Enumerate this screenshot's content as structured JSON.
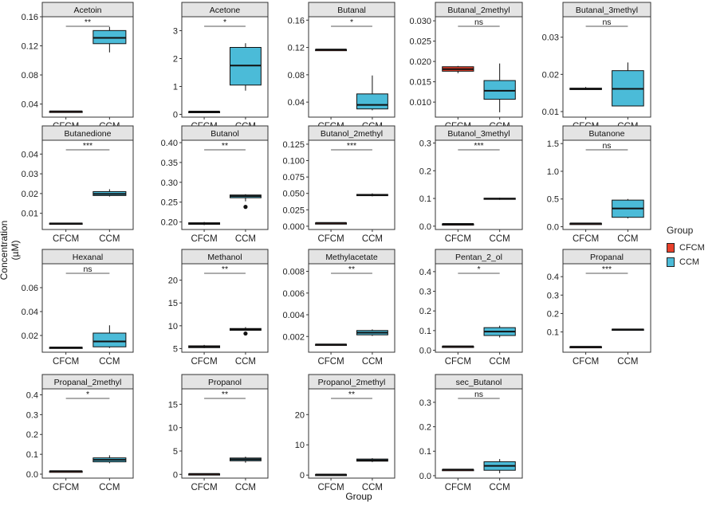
{
  "chart_data": {
    "type": "boxplot",
    "layout": "facet_grid_5_columns",
    "xlabel": "Group",
    "ylabel": "Concentration (µM)",
    "groups": [
      "CFCM",
      "CCM"
    ],
    "legend": {
      "title": "Group",
      "placement": "right",
      "entries": [
        {
          "label": "CFCM",
          "color": "#E8402B"
        },
        {
          "label": "CCM",
          "color": "#4BBBD8"
        }
      ]
    },
    "panels": [
      {
        "title": "Acetoin",
        "sig": "**",
        "yrange": [
          0.022,
          0.16
        ],
        "yticks": [
          0.04,
          0.08,
          0.12,
          0.16
        ],
        "tick_labels": [
          "0.04",
          "0.08",
          "0.12",
          "0.16"
        ],
        "boxes": [
          {
            "min": 0.03,
            "q1": 0.03,
            "median": 0.03,
            "q3": 0.03,
            "max": 0.03,
            "outliers": []
          },
          {
            "min": 0.111,
            "q1": 0.123,
            "median": 0.131,
            "q3": 0.141,
            "max": 0.146,
            "outliers": []
          }
        ]
      },
      {
        "title": "Acetone",
        "sig": "*",
        "yrange": [
          -0.1,
          3.5
        ],
        "yticks": [
          0,
          1,
          2,
          3
        ],
        "tick_labels": [
          "0",
          "1",
          "2",
          "3"
        ],
        "boxes": [
          {
            "min": 0.1,
            "q1": 0.1,
            "median": 0.1,
            "q3": 0.1,
            "max": 0.1,
            "outliers": []
          },
          {
            "min": 0.85,
            "q1": 1.05,
            "median": 1.75,
            "q3": 2.4,
            "max": 2.55,
            "outliers": []
          }
        ]
      },
      {
        "title": "Butanal",
        "sig": "*",
        "yrange": [
          0.018,
          0.165
        ],
        "yticks": [
          0.04,
          0.08,
          0.12,
          0.16
        ],
        "tick_labels": [
          "0.04",
          "0.08",
          "0.12",
          "0.16"
        ],
        "boxes": [
          {
            "min": 0.117,
            "q1": 0.117,
            "median": 0.117,
            "q3": 0.117,
            "max": 0.117,
            "outliers": []
          },
          {
            "min": 0.028,
            "q1": 0.03,
            "median": 0.036,
            "q3": 0.052,
            "max": 0.079,
            "outliers": []
          }
        ]
      },
      {
        "title": "Butanal_2methyl",
        "sig": "ns",
        "yrange": [
          0.0063,
          0.031
        ],
        "yticks": [
          0.01,
          0.015,
          0.02,
          0.025,
          0.03
        ],
        "tick_labels": [
          "0.010",
          "0.015",
          "0.020",
          "0.025",
          "0.030"
        ],
        "boxes": [
          {
            "min": 0.0171,
            "q1": 0.0176,
            "median": 0.0181,
            "q3": 0.0187,
            "max": 0.0189,
            "outliers": []
          },
          {
            "min": 0.0075,
            "q1": 0.0107,
            "median": 0.0128,
            "q3": 0.0153,
            "max": 0.0195,
            "outliers": []
          }
        ]
      },
      {
        "title": "Butanal_3methyl",
        "sig": "ns",
        "yrange": [
          0.0085,
          0.0355
        ],
        "yticks": [
          0.01,
          0.02,
          0.03
        ],
        "tick_labels": [
          "0.01",
          "0.02",
          "0.03"
        ],
        "boxes": [
          {
            "min": 0.0158,
            "q1": 0.0159,
            "median": 0.0161,
            "q3": 0.0163,
            "max": 0.0166,
            "outliers": []
          },
          {
            "min": 0.0115,
            "q1": 0.0115,
            "median": 0.0161,
            "q3": 0.021,
            "max": 0.0232,
            "outliers": []
          }
        ]
      },
      {
        "title": "Butanedione",
        "sig": "***",
        "yrange": [
          0.0018,
          0.047
        ],
        "yticks": [
          0.01,
          0.02,
          0.03,
          0.04
        ],
        "tick_labels": [
          "0.01",
          "0.02",
          "0.03",
          "0.04"
        ],
        "boxes": [
          {
            "min": 0.0048,
            "q1": 0.0048,
            "median": 0.0049,
            "q3": 0.005,
            "max": 0.005,
            "outliers": []
          },
          {
            "min": 0.0185,
            "q1": 0.019,
            "median": 0.0198,
            "q3": 0.021,
            "max": 0.0222,
            "outliers": []
          }
        ]
      },
      {
        "title": "Butanol",
        "sig": "**",
        "yrange": [
          0.181,
          0.406
        ],
        "yticks": [
          0.2,
          0.25,
          0.3,
          0.35,
          0.4
        ],
        "tick_labels": [
          "0.20",
          "0.25",
          "0.30",
          "0.35",
          "0.40"
        ],
        "boxes": [
          {
            "min": 0.192,
            "q1": 0.194,
            "median": 0.196,
            "q3": 0.198,
            "max": 0.2,
            "outliers": []
          },
          {
            "min": 0.252,
            "q1": 0.261,
            "median": 0.265,
            "q3": 0.268,
            "max": 0.27,
            "outliers": [
              0.238
            ]
          }
        ]
      },
      {
        "title": "Butanol_2methyl",
        "sig": "***",
        "yrange": [
          -0.005,
          0.131
        ],
        "yticks": [
          0,
          0.025,
          0.05,
          0.075,
          0.1,
          0.125
        ],
        "tick_labels": [
          "0.000",
          "0.025",
          "0.050",
          "0.075",
          "0.100",
          "0.125"
        ],
        "boxes": [
          {
            "min": 0.005,
            "q1": 0.005,
            "median": 0.005,
            "q3": 0.005,
            "max": 0.005,
            "outliers": []
          },
          {
            "min": 0.0455,
            "q1": 0.0465,
            "median": 0.0475,
            "q3": 0.0485,
            "max": 0.05,
            "outliers": []
          }
        ]
      },
      {
        "title": "Butanol_3methyl",
        "sig": "***",
        "yrange": [
          -0.012,
          0.31
        ],
        "yticks": [
          0,
          0.1,
          0.2,
          0.3
        ],
        "tick_labels": [
          "0.0",
          "0.1",
          "0.2",
          "0.3"
        ],
        "boxes": [
          {
            "min": 0.008,
            "q1": 0.008,
            "median": 0.008,
            "q3": 0.008,
            "max": 0.008,
            "outliers": []
          },
          {
            "min": 0.095,
            "q1": 0.097,
            "median": 0.099,
            "q3": 0.101,
            "max": 0.103,
            "outliers": []
          }
        ]
      },
      {
        "title": "Butanone",
        "sig": "ns",
        "yrange": [
          -0.05,
          1.56
        ],
        "yticks": [
          0,
          0.5,
          1.0,
          1.5
        ],
        "tick_labels": [
          "0.0",
          "0.5",
          "1.0",
          "1.5"
        ],
        "boxes": [
          {
            "min": 0.06,
            "q1": 0.06,
            "median": 0.06,
            "q3": 0.06,
            "max": 0.06,
            "outliers": []
          },
          {
            "min": 0.15,
            "q1": 0.17,
            "median": 0.33,
            "q3": 0.48,
            "max": 0.5,
            "outliers": []
          }
        ]
      },
      {
        "title": "Hexanal",
        "sig": "ns",
        "yrange": [
          0.006,
          0.08
        ],
        "yticks": [
          0.02,
          0.04,
          0.06
        ],
        "tick_labels": [
          "0.02",
          "0.04",
          "0.06"
        ],
        "boxes": [
          {
            "min": 0.0098,
            "q1": 0.0099,
            "median": 0.01,
            "q3": 0.0101,
            "max": 0.0102,
            "outliers": []
          },
          {
            "min": 0.0095,
            "q1": 0.0105,
            "median": 0.015,
            "q3": 0.022,
            "max": 0.0285,
            "outliers": []
          }
        ]
      },
      {
        "title": "Methanol",
        "sig": "**",
        "yrange": [
          4.2,
          23.6
        ],
        "yticks": [
          5,
          10,
          15,
          20
        ],
        "tick_labels": [
          "5",
          "10",
          "15",
          "20"
        ],
        "boxes": [
          {
            "min": 5.1,
            "q1": 5.2,
            "median": 5.4,
            "q3": 5.6,
            "max": 5.8,
            "outliers": []
          },
          {
            "min": 8.9,
            "q1": 9.0,
            "median": 9.2,
            "q3": 9.4,
            "max": 9.7,
            "outliers": [
              8.3
            ]
          }
        ]
      },
      {
        "title": "Methylacetate",
        "sig": "**",
        "yrange": [
          0.00055,
          0.0087
        ],
        "yticks": [
          0.002,
          0.004,
          0.006,
          0.008
        ],
        "tick_labels": [
          "0.002",
          "0.004",
          "0.006",
          "0.008"
        ],
        "boxes": [
          {
            "min": 0.00125,
            "q1": 0.00125,
            "median": 0.00127,
            "q3": 0.00128,
            "max": 0.0013,
            "outliers": []
          },
          {
            "min": 0.00205,
            "q1": 0.00215,
            "median": 0.00235,
            "q3": 0.00255,
            "max": 0.00265,
            "outliers": []
          }
        ]
      },
      {
        "title": "Pentan_2_ol",
        "sig": "*",
        "yrange": [
          -0.01,
          0.44
        ],
        "yticks": [
          0,
          0.1,
          0.2,
          0.3,
          0.4
        ],
        "tick_labels": [
          "0.0",
          "0.1",
          "0.2",
          "0.3",
          "0.4"
        ],
        "boxes": [
          {
            "min": 0.02,
            "q1": 0.02,
            "median": 0.02,
            "q3": 0.02,
            "max": 0.02,
            "outliers": []
          },
          {
            "min": 0.065,
            "q1": 0.075,
            "median": 0.095,
            "q3": 0.115,
            "max": 0.125,
            "outliers": []
          }
        ]
      },
      {
        "title": "Propanal",
        "sig": "***",
        "yrange": [
          -0.01,
          0.47
        ],
        "yticks": [
          0.1,
          0.2,
          0.3,
          0.4
        ],
        "tick_labels": [
          "0.1",
          "0.2",
          "0.3",
          "0.4"
        ],
        "boxes": [
          {
            "min": 0.02,
            "q1": 0.02,
            "median": 0.02,
            "q3": 0.02,
            "max": 0.02,
            "outliers": []
          },
          {
            "min": 0.112,
            "q1": 0.113,
            "median": 0.114,
            "q3": 0.115,
            "max": 0.116,
            "outliers": []
          }
        ]
      },
      {
        "title": "Propanal_2methyl",
        "sig": "*",
        "yrange": [
          -0.02,
          0.43
        ],
        "yticks": [
          0,
          0.1,
          0.2,
          0.3,
          0.4
        ],
        "tick_labels": [
          "0.0",
          "0.1",
          "0.2",
          "0.3",
          "0.4"
        ],
        "boxes": [
          {
            "min": 0.015,
            "q1": 0.015,
            "median": 0.015,
            "q3": 0.015,
            "max": 0.015,
            "outliers": []
          },
          {
            "min": 0.055,
            "q1": 0.062,
            "median": 0.072,
            "q3": 0.082,
            "max": 0.095,
            "outliers": []
          }
        ]
      },
      {
        "title": "Propanol",
        "sig": "**",
        "yrange": [
          -0.8,
          18.3
        ],
        "yticks": [
          0,
          5,
          10,
          15
        ],
        "tick_labels": [
          "0",
          "5",
          "10",
          "15"
        ],
        "boxes": [
          {
            "min": 0.1,
            "q1": 0.1,
            "median": 0.1,
            "q3": 0.1,
            "max": 0.1,
            "outliers": []
          },
          {
            "min": 2.5,
            "q1": 2.9,
            "median": 3.2,
            "q3": 3.5,
            "max": 3.8,
            "outliers": []
          }
        ]
      },
      {
        "title": "Propanol_2methyl",
        "sig": "**",
        "yrange": [
          -1.0,
          28.5
        ],
        "yticks": [
          0,
          10,
          20
        ],
        "tick_labels": [
          "0",
          "10",
          "20"
        ],
        "boxes": [
          {
            "min": 0.2,
            "q1": 0.2,
            "median": 0.2,
            "q3": 0.2,
            "max": 0.2,
            "outliers": []
          },
          {
            "min": 4.3,
            "q1": 4.6,
            "median": 4.9,
            "q3": 5.3,
            "max": 5.6,
            "outliers": []
          }
        ]
      },
      {
        "title": "sec_Butanol",
        "sig": "ns",
        "yrange": [
          -0.01,
          0.355
        ],
        "yticks": [
          0,
          0.1,
          0.2,
          0.3
        ],
        "tick_labels": [
          "0.0",
          "0.1",
          "0.2",
          "0.3"
        ],
        "boxes": [
          {
            "min": 0.024,
            "q1": 0.024,
            "median": 0.025,
            "q3": 0.025,
            "max": 0.026,
            "outliers": []
          },
          {
            "min": 0.01,
            "q1": 0.022,
            "median": 0.04,
            "q3": 0.057,
            "max": 0.068,
            "outliers": []
          }
        ]
      }
    ]
  }
}
